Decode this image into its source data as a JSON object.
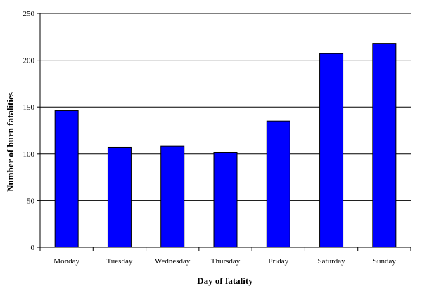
{
  "chart_data": {
    "type": "bar",
    "title": "",
    "categories": [
      "Monday",
      "Tuesday",
      "Wednesday",
      "Thursday",
      "Friday",
      "Saturday",
      "Sunday"
    ],
    "values": [
      146,
      107,
      108,
      101,
      135,
      207,
      218
    ],
    "xlabel": "Day of fatality",
    "ylabel": "Number of burn fatalities",
    "ylim": [
      0,
      250
    ],
    "yticks": [
      0,
      50,
      100,
      150,
      200,
      250
    ],
    "grid": true,
    "bar_color": "#0000ff",
    "legend": "none"
  }
}
